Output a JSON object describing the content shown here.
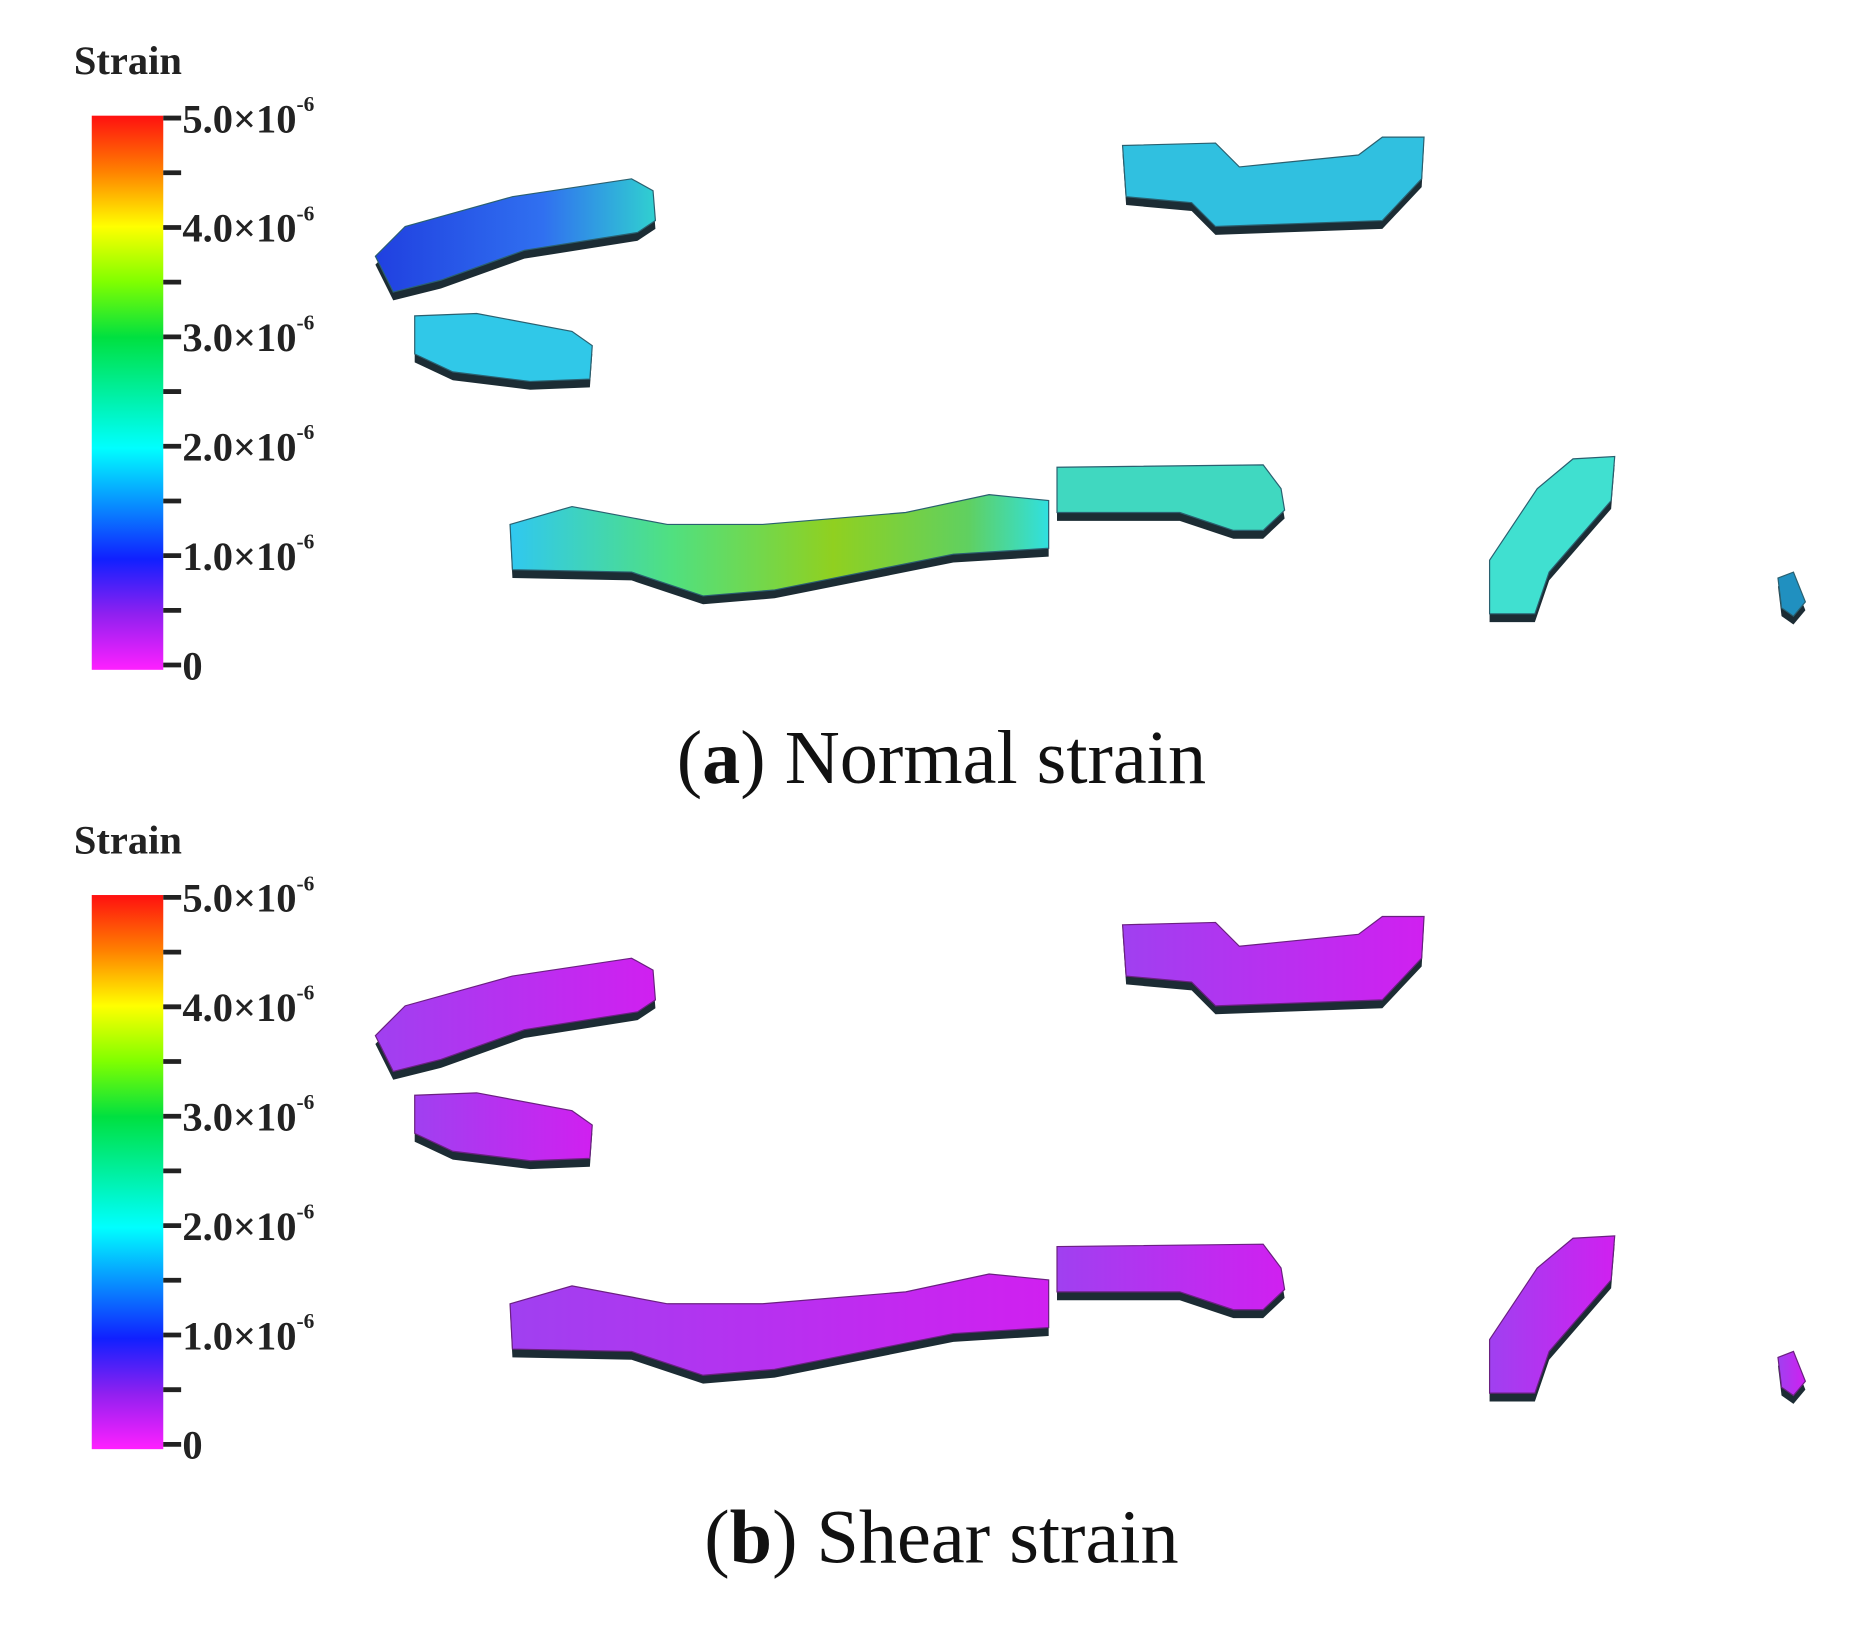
{
  "panels": [
    {
      "colorbar": {
        "title": "Strain",
        "ticks": [
          {
            "base": "5.0×10",
            "exp": "-6"
          },
          {
            "base": "4.0×10",
            "exp": "-6"
          },
          {
            "base": "3.0×10",
            "exp": "-6"
          },
          {
            "base": "2.0×10",
            "exp": "-6"
          },
          {
            "base": "1.0×10",
            "exp": "-6"
          },
          {
            "base": "0"
          }
        ]
      },
      "caption": {
        "open": "(",
        "letter": "a",
        "text": ") Normal strain"
      }
    },
    {
      "colorbar": {
        "title": "Strain",
        "ticks": [
          {
            "base": "5.0×10",
            "exp": "-6"
          },
          {
            "base": "4.0×10",
            "exp": "-6"
          },
          {
            "base": "3.0×10",
            "exp": "-6"
          },
          {
            "base": "2.0×10",
            "exp": "-6"
          },
          {
            "base": "1.0×10",
            "exp": "-6"
          },
          {
            "base": "0"
          }
        ]
      },
      "caption": {
        "open": "(",
        "letter": "b",
        "text": ") Shear strain"
      }
    }
  ]
}
